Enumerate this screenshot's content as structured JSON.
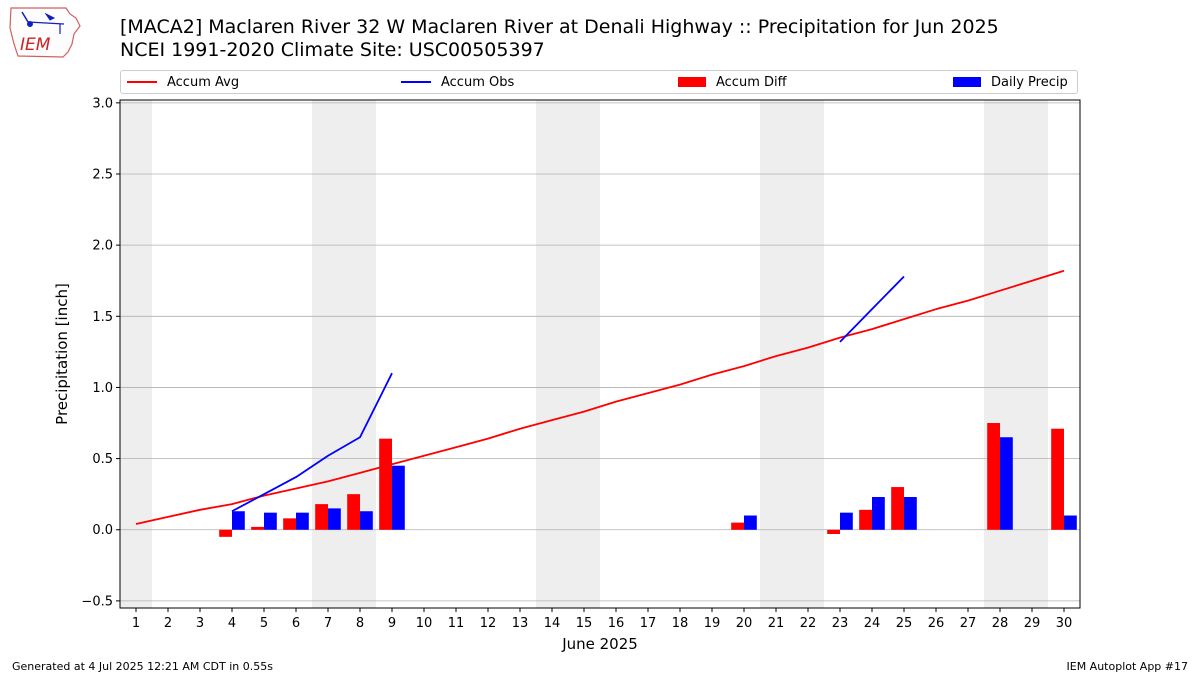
{
  "header": {
    "title_line1": "[MACA2] Maclaren River 32 W Maclaren River at Denali Highway :: Precipitation for Jun 2025",
    "title_line2": "NCEI 1991-2020 Climate Site: USC00505397",
    "logo_text": "IEM"
  },
  "footer": {
    "generated": "Generated at 4 Jul 2025 12:21 AM CDT in 0.55s",
    "app": "IEM Autoplot App #17"
  },
  "colors": {
    "avg": "#ff0000",
    "obs": "#0000ff",
    "diff": "#ff0000",
    "daily": "#0000ff",
    "weekend_shade": "#eeeeee",
    "grid": "#b0b0b0"
  },
  "chart_data": {
    "type": "bar",
    "xlabel": "June 2025",
    "ylabel": "Precipitation [inch]",
    "xlim": [
      0.5,
      30.5
    ],
    "ylim": [
      -0.55,
      3.02
    ],
    "yticks": [
      -0.5,
      0.0,
      0.5,
      1.0,
      1.5,
      2.0,
      2.5,
      3.0
    ],
    "ytick_labels": [
      "−0.5",
      "0.0",
      "0.5",
      "1.0",
      "1.5",
      "2.0",
      "2.5",
      "3.0"
    ],
    "days": [
      1,
      2,
      3,
      4,
      5,
      6,
      7,
      8,
      9,
      10,
      11,
      12,
      13,
      14,
      15,
      16,
      17,
      18,
      19,
      20,
      21,
      22,
      23,
      24,
      25,
      26,
      27,
      28,
      29,
      30
    ],
    "grid": "horizontal",
    "legend_placement": "top",
    "weekend_days": [
      1,
      7,
      8,
      14,
      15,
      21,
      22,
      28,
      29
    ],
    "series": [
      {
        "name": "Accum Avg",
        "kind": "line",
        "x": [
          1,
          2,
          3,
          4,
          5,
          6,
          7,
          8,
          9,
          10,
          11,
          12,
          13,
          14,
          15,
          16,
          17,
          18,
          19,
          20,
          21,
          22,
          23,
          24,
          25,
          26,
          27,
          28,
          29,
          30
        ],
        "values": [
          0.04,
          0.09,
          0.14,
          0.18,
          0.24,
          0.29,
          0.34,
          0.4,
          0.46,
          0.52,
          0.58,
          0.64,
          0.71,
          0.77,
          0.83,
          0.9,
          0.96,
          1.02,
          1.09,
          1.15,
          1.22,
          1.28,
          1.35,
          1.41,
          1.48,
          1.55,
          1.61,
          1.68,
          1.75,
          1.82
        ]
      },
      {
        "name": "Accum Obs",
        "kind": "line",
        "segments": [
          {
            "x": [
              4,
              5,
              6,
              7,
              8,
              9
            ],
            "values": [
              0.13,
              0.25,
              0.37,
              0.52,
              0.65,
              1.1
            ]
          },
          {
            "x": [
              23,
              24,
              25
            ],
            "values": [
              1.32,
              1.55,
              1.78
            ]
          }
        ]
      },
      {
        "name": "Accum Diff",
        "kind": "bar",
        "x": [
          4,
          5,
          6,
          7,
          8,
          9,
          20,
          23,
          24,
          25,
          28,
          30
        ],
        "values": [
          -0.05,
          0.02,
          0.08,
          0.18,
          0.25,
          0.64,
          0.05,
          -0.03,
          0.14,
          0.3,
          0.75,
          0.71
        ]
      },
      {
        "name": "Daily Precip",
        "kind": "bar",
        "x": [
          4,
          5,
          6,
          7,
          8,
          9,
          20,
          23,
          24,
          25,
          28,
          30
        ],
        "values": [
          0.13,
          0.12,
          0.12,
          0.15,
          0.13,
          0.45,
          0.1,
          0.12,
          0.23,
          0.23,
          0.65,
          0.1
        ]
      }
    ]
  }
}
